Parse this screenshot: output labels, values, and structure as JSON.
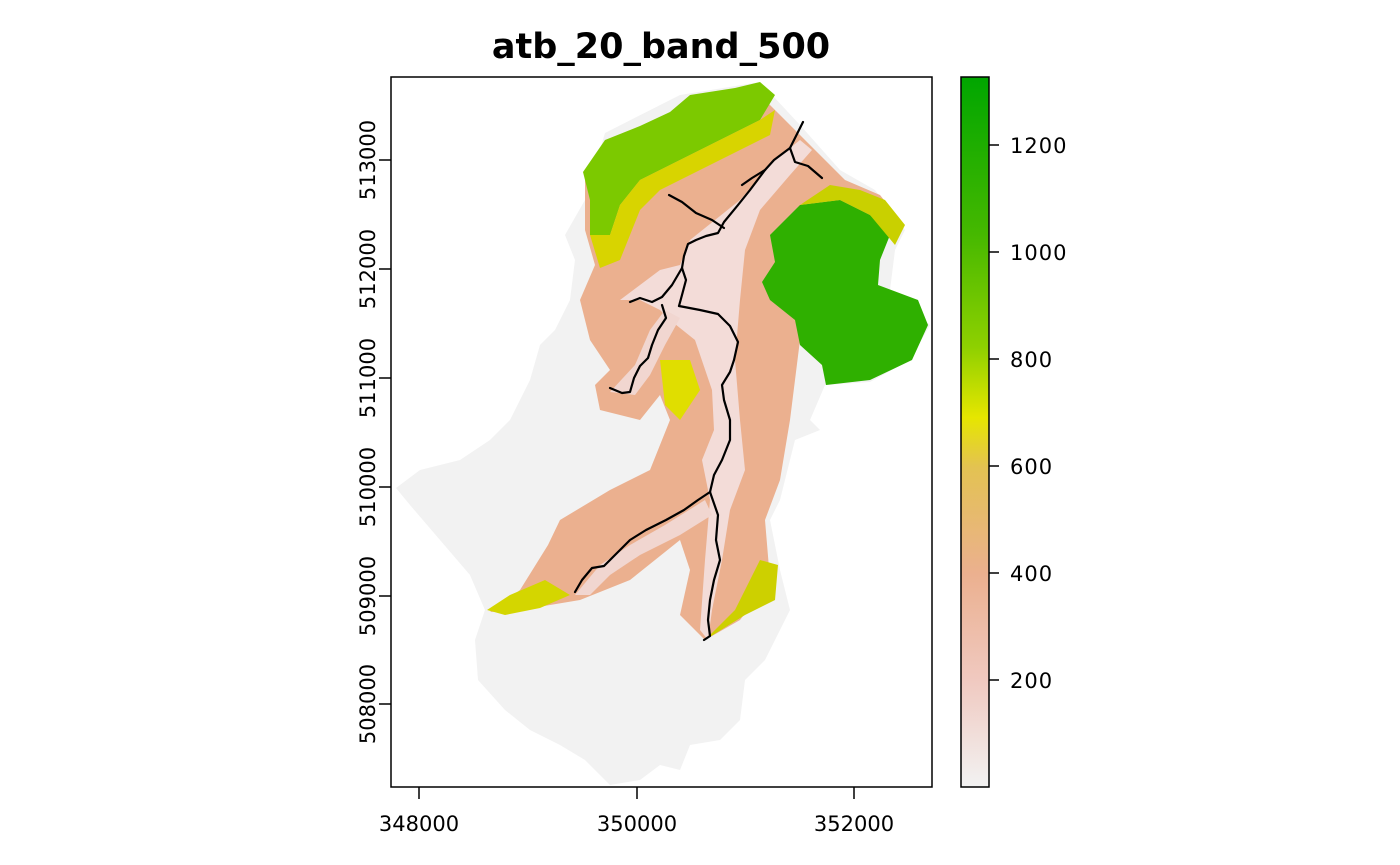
{
  "title": "atb_20_band_500",
  "x_axis": {
    "ticks": [
      348000,
      350000,
      352000
    ],
    "tick_labels": [
      "348000",
      "350000",
      "352000"
    ],
    "range": [
      347730,
      352700
    ]
  },
  "y_axis": {
    "ticks": [
      508000,
      509000,
      510000,
      511000,
      512000,
      513000
    ],
    "tick_labels": [
      "508000",
      "509000",
      "510000",
      "511000",
      "512000",
      "513000"
    ],
    "range": [
      507270,
      513790
    ]
  },
  "legend": {
    "ticks": [
      200,
      400,
      600,
      800,
      1000,
      1200
    ],
    "tick_labels": [
      "200",
      "400",
      "600",
      "800",
      "1000",
      "1200"
    ],
    "range": [
      0,
      1330
    ],
    "colors": [
      "#f2f2f2",
      "#f0c9c0",
      "#ebb08f",
      "#e3c252",
      "#e6e600",
      "#8ed000",
      "#45b800",
      "#00a600"
    ]
  },
  "layers": {
    "background_fill": "#f2f2f2",
    "river_color": "#000000"
  }
}
